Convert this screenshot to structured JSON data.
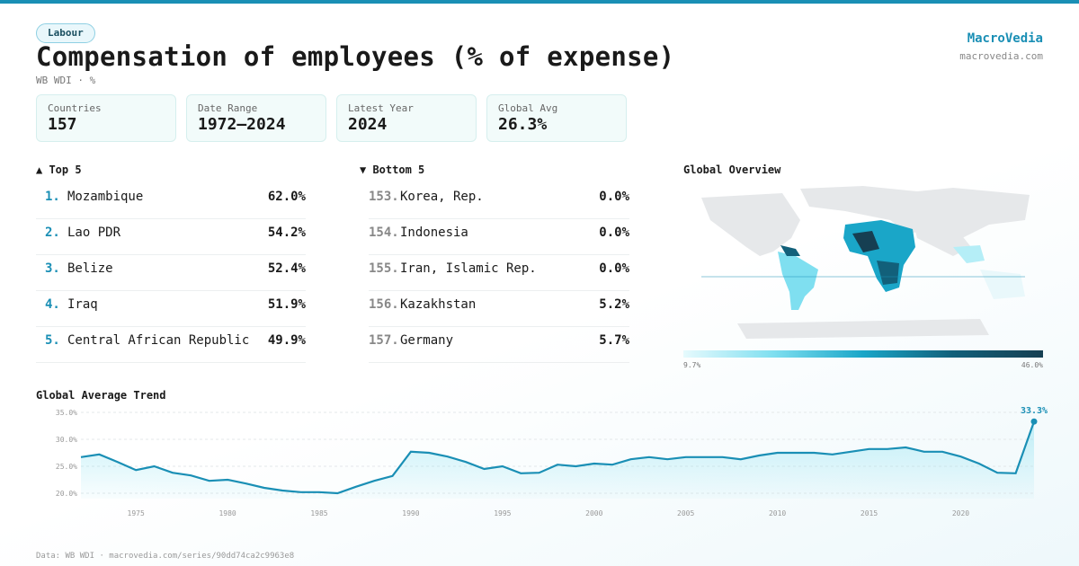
{
  "header": {
    "tag": "Labour",
    "title": "Compensation of employees (% of expense)",
    "subtitle": "WB WDI · %",
    "brand": "MacroVedia",
    "brand_url": "macrovedia.com"
  },
  "stats": [
    {
      "label": "Countries",
      "value": "157"
    },
    {
      "label": "Date Range",
      "value": "1972–2024"
    },
    {
      "label": "Latest Year",
      "value": "2024"
    },
    {
      "label": "Global Avg",
      "value": "26.3%"
    }
  ],
  "top": {
    "title": "▲ Top 5",
    "rows": [
      {
        "rank": "1.",
        "name": "Mozambique",
        "value": "62.0%"
      },
      {
        "rank": "2.",
        "name": "Lao PDR",
        "value": "54.2%"
      },
      {
        "rank": "3.",
        "name": "Belize",
        "value": "52.4%"
      },
      {
        "rank": "4.",
        "name": "Iraq",
        "value": "51.9%"
      },
      {
        "rank": "5.",
        "name": "Central African Republic",
        "value": "49.9%"
      }
    ]
  },
  "bottom": {
    "title": "▼ Bottom 5",
    "rows": [
      {
        "rank": "153.",
        "name": "Korea, Rep.",
        "value": "0.0%"
      },
      {
        "rank": "154.",
        "name": "Indonesia",
        "value": "0.0%"
      },
      {
        "rank": "155.",
        "name": "Iran, Islamic Rep.",
        "value": "0.0%"
      },
      {
        "rank": "156.",
        "name": "Kazakhstan",
        "value": "5.2%"
      },
      {
        "rank": "157.",
        "name": "Germany",
        "value": "5.7%"
      }
    ]
  },
  "map": {
    "title": "Global Overview",
    "legend_min": "9.7%",
    "legend_max": "46.0%"
  },
  "chart_data": {
    "type": "line",
    "title": "Global Average Trend",
    "color": "#1a8fb5",
    "x": [
      1972,
      1973,
      1974,
      1975,
      1976,
      1977,
      1978,
      1979,
      1980,
      1981,
      1982,
      1983,
      1984,
      1985,
      1986,
      1987,
      1988,
      1989,
      1990,
      1991,
      1992,
      1993,
      1994,
      1995,
      1996,
      1997,
      1998,
      1999,
      2000,
      2001,
      2002,
      2003,
      2004,
      2005,
      2006,
      2007,
      2008,
      2009,
      2010,
      2011,
      2012,
      2013,
      2014,
      2015,
      2016,
      2017,
      2018,
      2019,
      2020,
      2021,
      2022,
      2023,
      2024
    ],
    "values": [
      26.7,
      27.2,
      25.8,
      24.3,
      25.0,
      23.8,
      23.3,
      22.3,
      22.5,
      21.8,
      21.0,
      20.5,
      20.2,
      20.2,
      20.0,
      21.2,
      22.3,
      23.2,
      27.7,
      27.5,
      26.8,
      25.8,
      24.5,
      25.0,
      23.7,
      23.8,
      25.3,
      25.0,
      25.5,
      25.3,
      26.3,
      26.7,
      26.3,
      26.7,
      26.7,
      26.7,
      26.3,
      27.0,
      27.5,
      27.5,
      27.5,
      27.2,
      27.7,
      28.2,
      28.2,
      28.5,
      27.7,
      27.7,
      26.8,
      25.5,
      23.8,
      23.7,
      33.3
    ],
    "annotation": "33.3%",
    "xlim": [
      1972,
      2024
    ],
    "xticks": [
      1975,
      1980,
      1985,
      1990,
      1995,
      2000,
      2005,
      2010,
      2015,
      2020
    ],
    "ylim": [
      19,
      35.5
    ],
    "yticks": [
      {
        "value": 20,
        "label": "20.0%"
      },
      {
        "value": 25,
        "label": "25.0%"
      },
      {
        "value": 30,
        "label": "30.0%"
      },
      {
        "value": 35,
        "label": "35.0%"
      }
    ],
    "grid": true
  },
  "footer": "Data: WB WDI · macrovedia.com/series/90dd74ca2c9963e8"
}
